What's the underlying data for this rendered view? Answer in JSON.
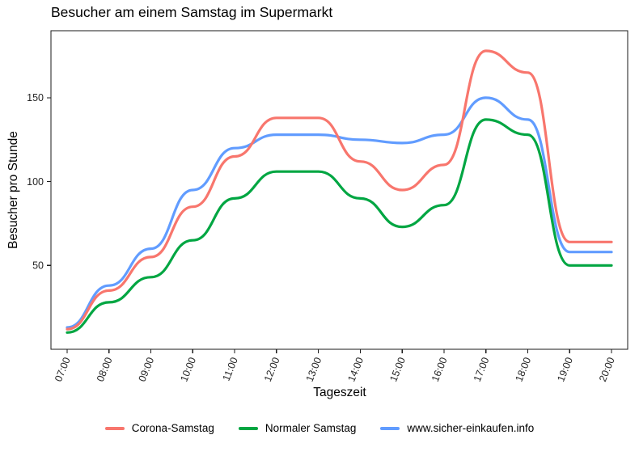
{
  "chart_data": {
    "type": "line",
    "title": "Besucher am einem Samstag im Supermarkt",
    "xlabel": "Tageszeit",
    "ylabel": "Besucher pro Stunde",
    "x_categories": [
      "07:00",
      "08:00",
      "09:00",
      "10:00",
      "11:00",
      "12:00",
      "13:00",
      "14:00",
      "15:00",
      "16:00",
      "17:00",
      "18:00",
      "19:00",
      "20:00"
    ],
    "y_ticks": [
      50,
      100,
      150
    ],
    "ylim": [
      0,
      190
    ],
    "grid": false,
    "legend_position": "bottom",
    "panel_style": "white background, black border box, outward tick marks, x tick labels rotated",
    "line_interpolation": "smoothed steps (flat plateau at each hourly value)",
    "series": [
      {
        "name": "Corona-Samstag",
        "color": "#F8766D",
        "values": [
          12,
          35,
          55,
          85,
          115,
          138,
          138,
          112,
          95,
          110,
          178,
          165,
          64,
          64
        ]
      },
      {
        "name": "Normaler Samstag",
        "color": "#00A642",
        "values": [
          10,
          28,
          43,
          65,
          90,
          106,
          106,
          90,
          73,
          86,
          137,
          128,
          50,
          50
        ]
      },
      {
        "name": "www.sicher-einkaufen.info",
        "color": "#619CFF",
        "values": [
          13,
          38,
          60,
          95,
          120,
          128,
          128,
          125,
          123,
          128,
          150,
          137,
          58,
          58
        ]
      }
    ]
  }
}
